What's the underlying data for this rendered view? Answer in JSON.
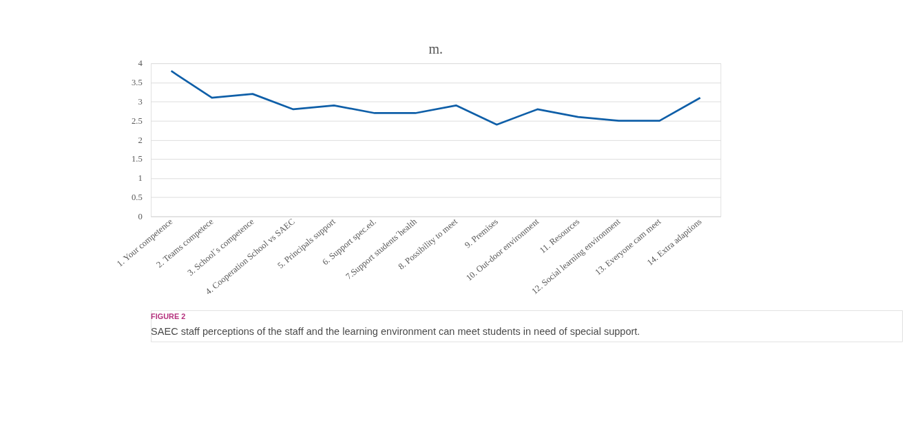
{
  "chart_data": {
    "type": "line",
    "title": "m.",
    "categories": [
      "1. Your competence",
      "2. Teams competece",
      "3. School´s competence",
      "4. Cooperation School vs SAEC",
      "5. Principals support",
      "6. Support spec.ed.",
      "7.Support students´health",
      "8. Possibility to meet",
      "9. Premises",
      "10. Out-door environment",
      "11. Resources",
      "12. Social learning environment",
      "13. Everyone cam meet",
      "14. Extra adaptions"
    ],
    "series": [
      {
        "color": "#0f5fa8",
        "values": [
          3.8,
          3.1,
          3.2,
          2.8,
          2.9,
          2.7,
          2.7,
          2.9,
          2.4,
          2.8,
          2.6,
          2.5,
          2.5,
          3.1
        ]
      }
    ],
    "ylim": [
      0,
      4
    ],
    "yticks": [
      0,
      0.5,
      1,
      1.5,
      2,
      2.5,
      3,
      3.5,
      4
    ],
    "grid": "y",
    "legend": false,
    "marker": "none",
    "line_style": "solid",
    "annotations": [
      "FIGURE 2",
      "SAEC staff perceptions of the staff and the learning environment can meet students in need of special support."
    ]
  }
}
